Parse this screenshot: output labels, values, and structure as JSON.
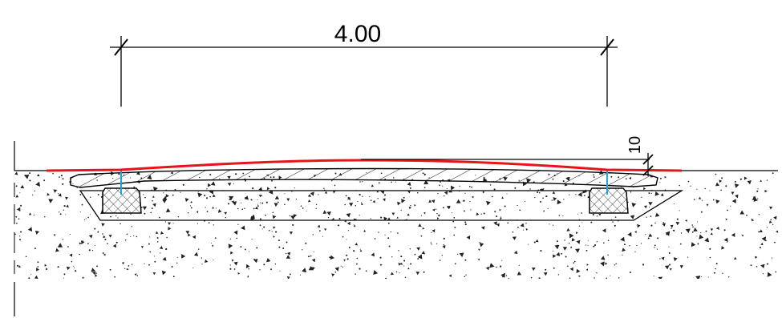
{
  "dimensions": {
    "width_label": "4.00",
    "height_label": "10"
  },
  "colors": {
    "surface_line": "#e8141b",
    "drain_marker": "#1fa3e0",
    "linework": "#000000",
    "hatch": "#000000",
    "aggregate": "#222222"
  }
}
